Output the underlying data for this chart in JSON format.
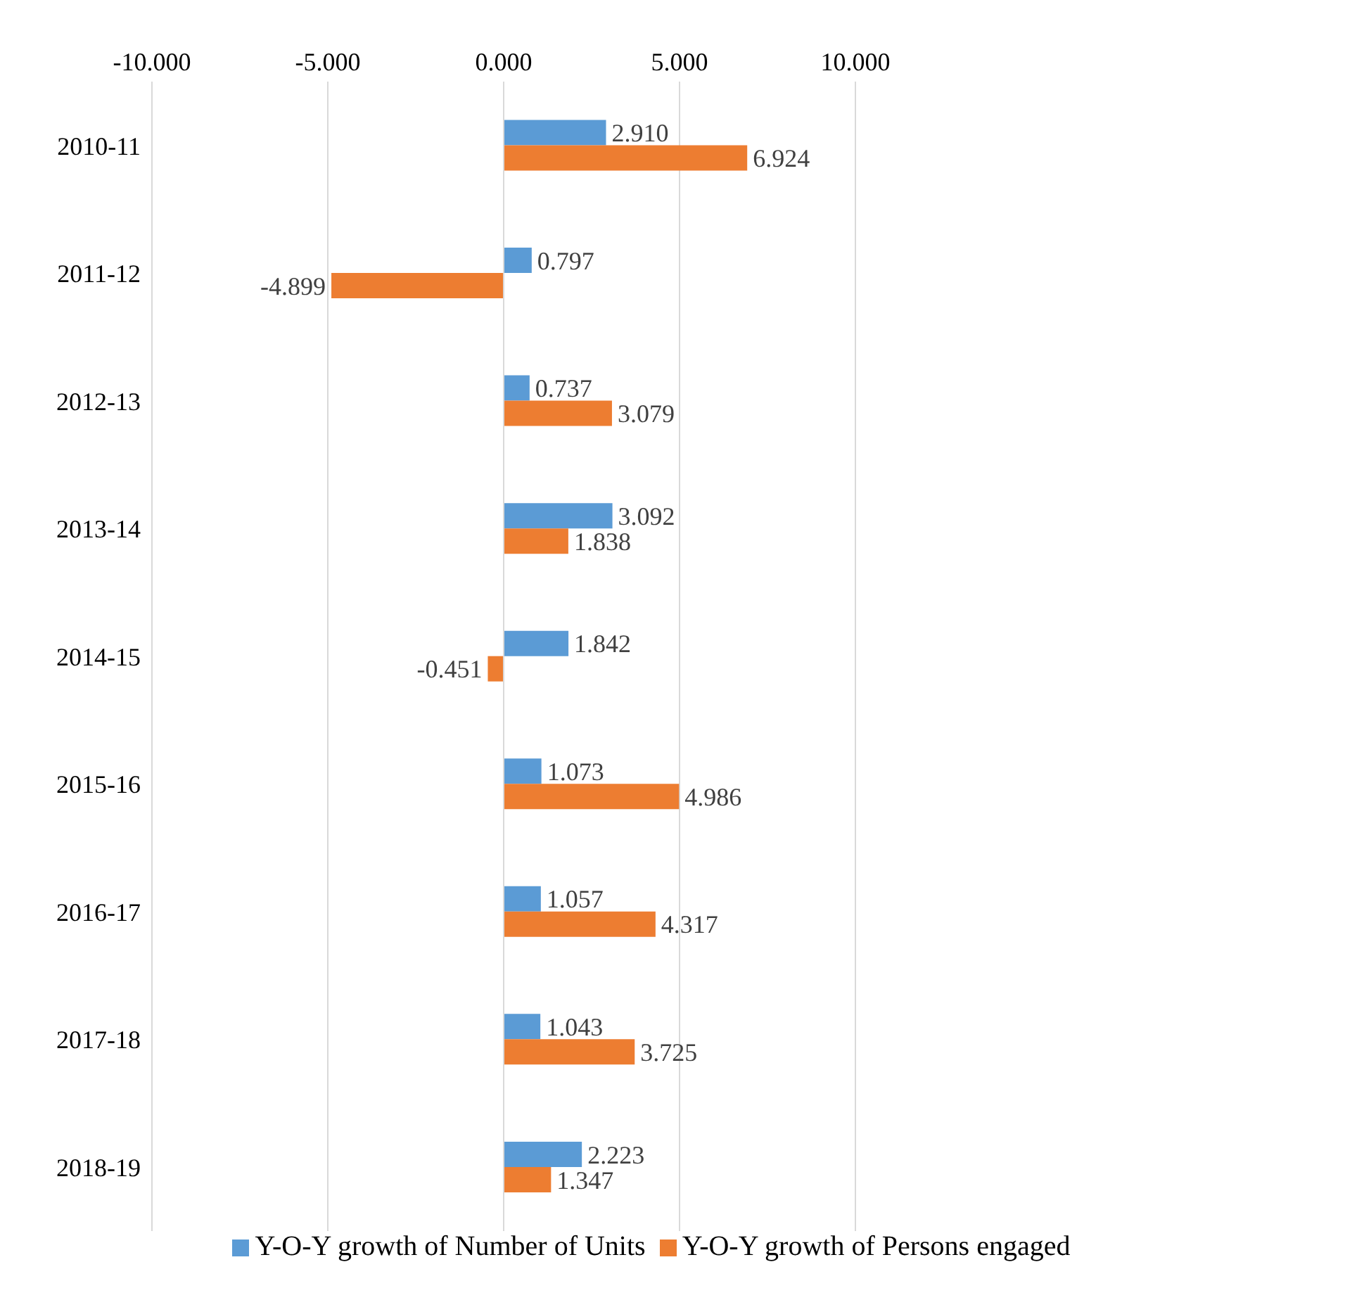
{
  "chart_data": {
    "type": "bar",
    "orientation": "horizontal",
    "categories": [
      "2010-11",
      "2011-12",
      "2012-13",
      "2013-14",
      "2014-15",
      "2015-16",
      "2016-17",
      "2017-18",
      "2018-19"
    ],
    "series": [
      {
        "name": "Y-O-Y growth of Number of Units",
        "color": "#5b9bd5",
        "values": [
          2.91,
          0.797,
          0.737,
          3.092,
          1.842,
          1.073,
          1.057,
          1.043,
          2.223
        ],
        "value_labels": [
          "2.910",
          "0.797",
          "0.737",
          "3.092",
          "1.842",
          "1.073",
          "1.057",
          "1.043",
          "2.223"
        ]
      },
      {
        "name": "Y-O-Y growth of Persons engaged",
        "color": "#ed7d31",
        "values": [
          6.924,
          -4.899,
          3.079,
          1.838,
          -0.451,
          4.986,
          4.317,
          3.725,
          1.347
        ],
        "value_labels": [
          "6.924",
          "-4.899",
          "3.079",
          "1.838",
          "-0.451",
          "4.986",
          "4.317",
          "3.725",
          "1.347"
        ]
      }
    ],
    "xlim": [
      -10,
      10
    ],
    "xticks": [
      {
        "value": -10,
        "label": "-10.000"
      },
      {
        "value": -5,
        "label": "-5.000"
      },
      {
        "value": 0,
        "label": "0.000"
      },
      {
        "value": 5,
        "label": "5.000"
      },
      {
        "value": 10,
        "label": "10.000"
      }
    ],
    "grid": "x",
    "legend": "bottom"
  }
}
